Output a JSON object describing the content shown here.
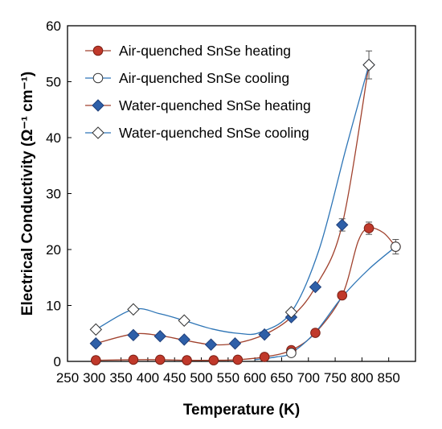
{
  "chart_data": {
    "type": "scatter",
    "xlabel": "Temperature (K)",
    "ylabel": "Electrical Conductivity (Ω⁻¹ cm⁻¹)",
    "xlim": [
      250,
      900
    ],
    "ylim": [
      0,
      60
    ],
    "xticks": [
      250,
      300,
      350,
      400,
      450,
      500,
      550,
      600,
      650,
      700,
      750,
      800,
      850
    ],
    "yticks": [
      0,
      10,
      20,
      30,
      40,
      50,
      60
    ],
    "grid": false,
    "legend_position": "top-left",
    "series": [
      {
        "name": "Air-quenched SnSe heating",
        "color": "#c0392b",
        "line_color": "#a0412d",
        "marker": "circle",
        "filled": true,
        "points": [
          {
            "x": 303,
            "y": 0.2
          },
          {
            "x": 373,
            "y": 0.3
          },
          {
            "x": 423,
            "y": 0.3
          },
          {
            "x": 473,
            "y": 0.2
          },
          {
            "x": 523,
            "y": 0.2
          },
          {
            "x": 568,
            "y": 0.3
          },
          {
            "x": 618,
            "y": 0.8
          },
          {
            "x": 668,
            "y": 2.0
          },
          {
            "x": 713,
            "y": 5.1
          },
          {
            "x": 763,
            "y": 11.8
          },
          {
            "x": 813,
            "y": 23.8,
            "err": 1.1
          },
          {
            "x": 863,
            "y": 20.5
          }
        ]
      },
      {
        "name": "Air-quenched SnSe cooling",
        "color": "#ffffff",
        "line_color": "#2e75b6",
        "marker": "circle",
        "filled": false,
        "points": [
          {
            "x": 863,
            "y": 20.5,
            "err": 1.3
          },
          {
            "x": 668,
            "y": 1.5
          }
        ]
      },
      {
        "name": "Water-quenched SnSe heating",
        "color": "#2e5fa8",
        "line_color": "#a0412d",
        "marker": "diamond",
        "filled": true,
        "points": [
          {
            "x": 303,
            "y": 3.2
          },
          {
            "x": 373,
            "y": 4.7
          },
          {
            "x": 423,
            "y": 4.5
          },
          {
            "x": 468,
            "y": 3.9
          },
          {
            "x": 518,
            "y": 3.0
          },
          {
            "x": 563,
            "y": 3.2
          },
          {
            "x": 618,
            "y": 4.8
          },
          {
            "x": 668,
            "y": 7.9
          },
          {
            "x": 713,
            "y": 13.3
          },
          {
            "x": 763,
            "y": 24.4,
            "err": 1.1
          },
          {
            "x": 813,
            "y": 53.0
          }
        ]
      },
      {
        "name": "Water-quenched SnSe cooling",
        "color": "#ffffff",
        "line_color": "#2e75b6",
        "marker": "diamond",
        "filled": false,
        "points": [
          {
            "x": 813,
            "y": 53.0,
            "err": 2.5
          },
          {
            "x": 668,
            "y": 8.8
          },
          {
            "x": 468,
            "y": 7.3
          },
          {
            "x": 373,
            "y": 9.3
          },
          {
            "x": 303,
            "y": 5.7
          }
        ]
      }
    ],
    "curves": [
      {
        "color": "#a0412d",
        "points": [
          [
            303,
            3.2
          ],
          [
            373,
            4.9
          ],
          [
            423,
            4.6
          ],
          [
            468,
            3.8
          ],
          [
            518,
            3.0
          ],
          [
            563,
            3.2
          ],
          [
            618,
            4.8
          ],
          [
            668,
            7.9
          ],
          [
            713,
            13.3
          ],
          [
            763,
            24.4
          ],
          [
            813,
            53.0
          ]
        ]
      },
      {
        "color": "#2e75b6",
        "points": [
          [
            303,
            5.7
          ],
          [
            373,
            9.3
          ],
          [
            423,
            8.5
          ],
          [
            468,
            7.3
          ],
          [
            520,
            5.8
          ],
          [
            570,
            5.0
          ],
          [
            610,
            5.2
          ],
          [
            668,
            8.8
          ],
          [
            720,
            20.0
          ],
          [
            770,
            38.0
          ],
          [
            813,
            53.0
          ]
        ]
      },
      {
        "color": "#a0412d",
        "points": [
          [
            303,
            0.2
          ],
          [
            373,
            0.3
          ],
          [
            423,
            0.3
          ],
          [
            473,
            0.2
          ],
          [
            523,
            0.2
          ],
          [
            568,
            0.3
          ],
          [
            618,
            0.8
          ],
          [
            668,
            2.0
          ],
          [
            713,
            5.1
          ],
          [
            763,
            11.8
          ],
          [
            793,
            21.5
          ],
          [
            813,
            23.8
          ],
          [
            840,
            23.0
          ],
          [
            863,
            20.5
          ]
        ]
      },
      {
        "color": "#2e75b6",
        "points": [
          [
            600,
            0.3
          ],
          [
            640,
            0.8
          ],
          [
            668,
            1.5
          ],
          [
            713,
            5.2
          ],
          [
            763,
            11.5
          ],
          [
            813,
            16.5
          ],
          [
            863,
            20.5
          ]
        ]
      }
    ]
  }
}
